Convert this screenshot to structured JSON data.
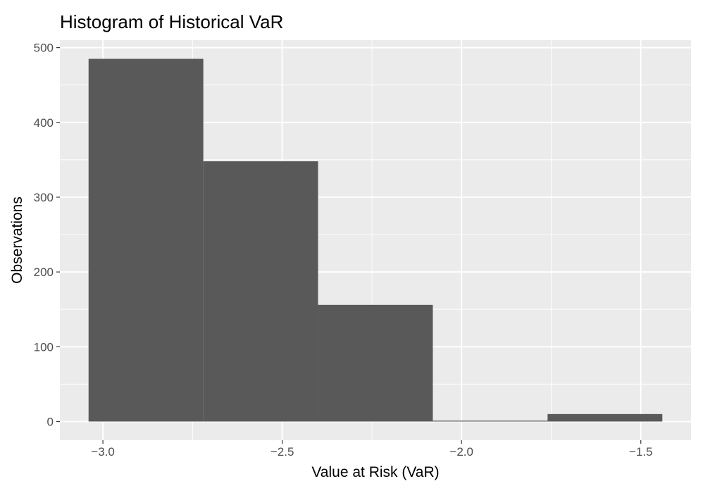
{
  "chart_data": {
    "type": "bar",
    "title": "Histogram of Historical VaR",
    "xlabel": "Value at Risk (VaR)",
    "ylabel": "Observations",
    "xlim": [
      -3.12,
      -1.36
    ],
    "ylim": [
      -25,
      510
    ],
    "x_ticks": [
      -3.0,
      -2.5,
      -2.0,
      -1.5
    ],
    "x_tick_labels": [
      "−3.0",
      "−2.5",
      "−2.0",
      "−1.5"
    ],
    "y_ticks": [
      0,
      100,
      200,
      300,
      400,
      500
    ],
    "y_tick_labels": [
      "0",
      "100",
      "200",
      "300",
      "400",
      "500"
    ],
    "bins": [
      {
        "x0": -3.04,
        "x1": -2.72,
        "count": 485
      },
      {
        "x0": -2.72,
        "x1": -2.4,
        "count": 348
      },
      {
        "x0": -2.4,
        "x1": -2.08,
        "count": 156
      },
      {
        "x0": -2.08,
        "x1": -1.76,
        "count": 0
      },
      {
        "x0": -1.76,
        "x1": -1.44,
        "count": 10
      }
    ],
    "grid": true,
    "colors": {
      "panel": "#ebebeb",
      "grid": "#ffffff",
      "bar": "#595959",
      "tick": "#4d4d4d"
    }
  }
}
